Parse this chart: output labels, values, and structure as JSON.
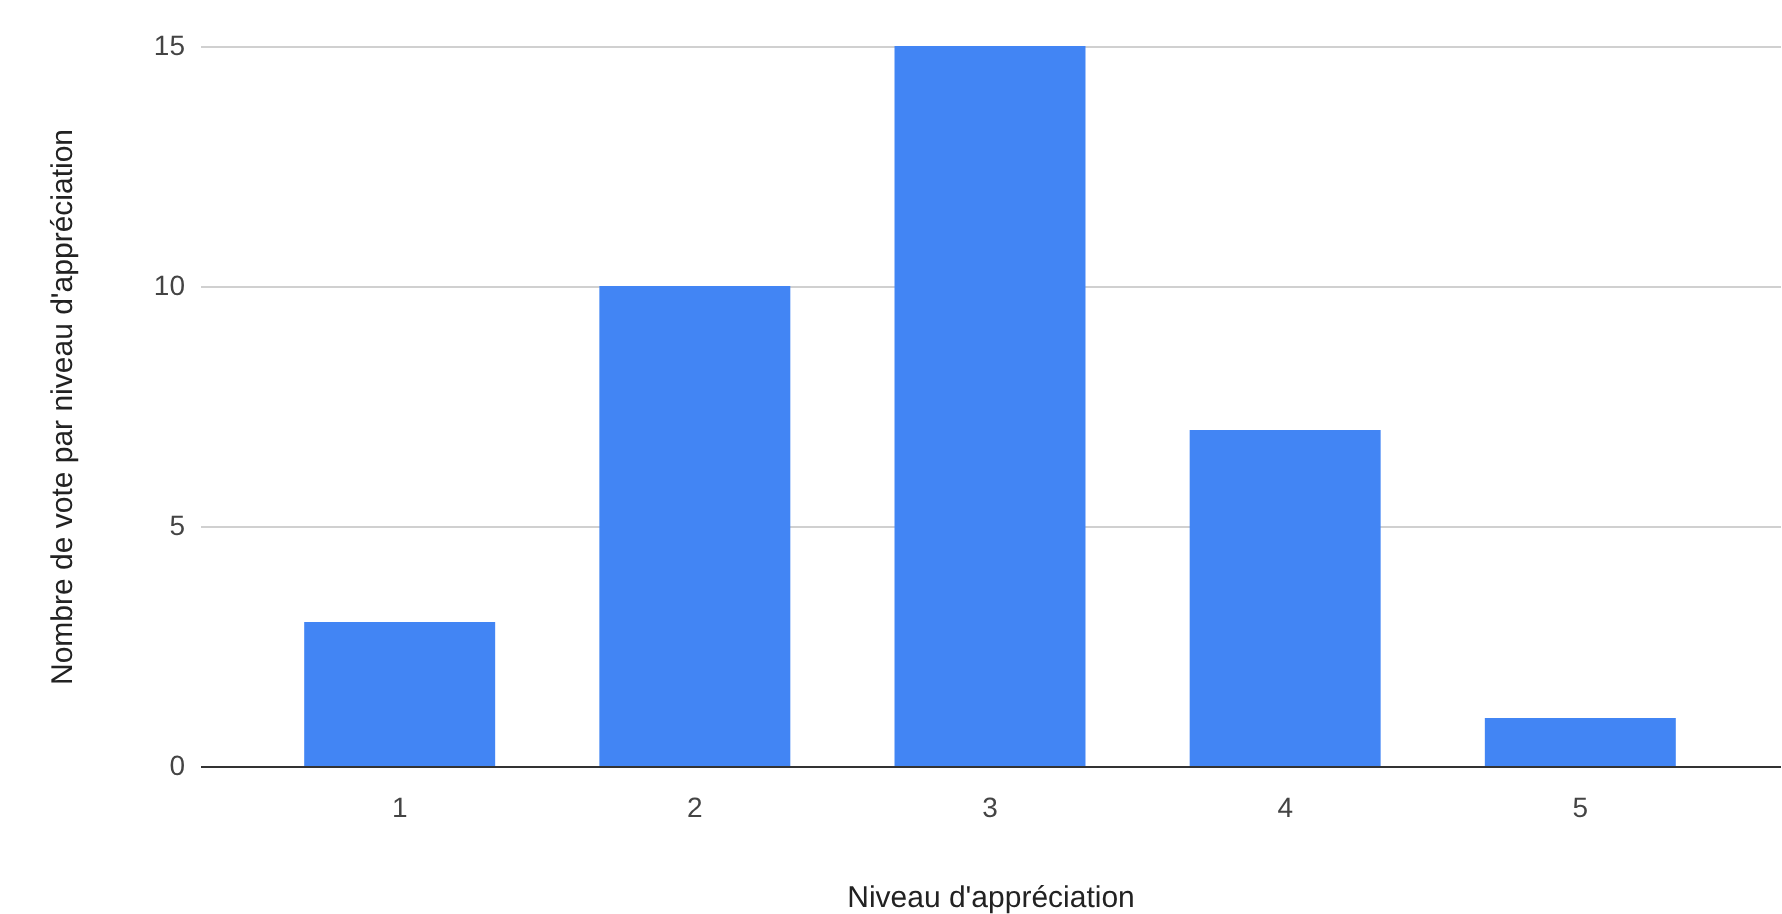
{
  "chart_data": {
    "type": "bar",
    "xlabel": "Niveau d'appréciation",
    "ylabel": "Nombre de vote par niveau d'appréciation",
    "categories": [
      "1",
      "2",
      "3",
      "4",
      "5"
    ],
    "values": [
      3,
      10,
      15,
      7,
      1
    ],
    "color": "#4285f4",
    "ylim": [
      0,
      15
    ],
    "yticks": [
      0,
      5,
      10,
      15
    ],
    "grid": "y"
  }
}
